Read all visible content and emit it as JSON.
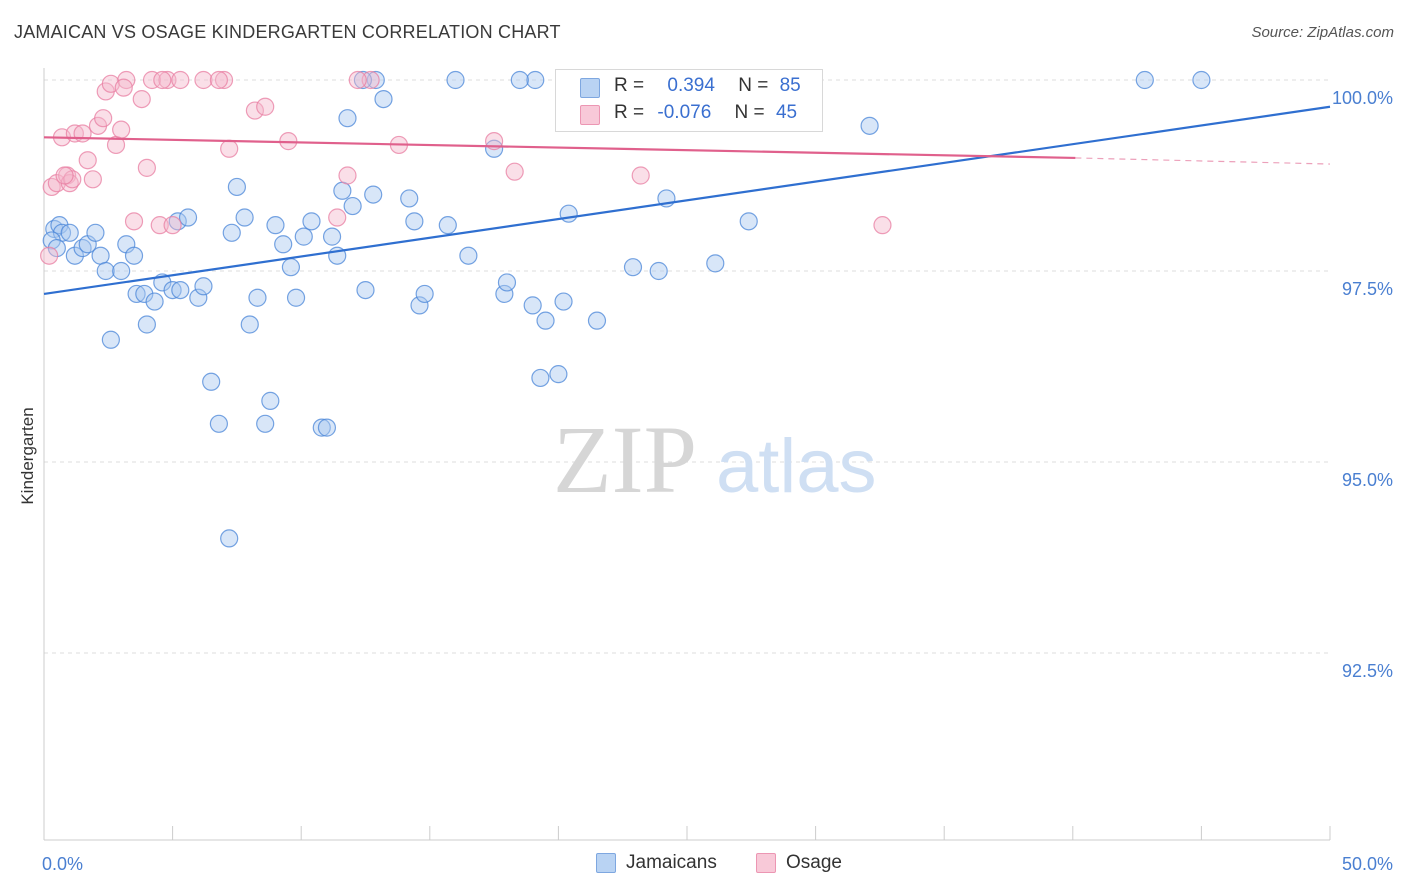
{
  "header": {
    "title": "JAMAICAN VS OSAGE KINDERGARTEN CORRELATION CHART",
    "source": "Source: ZipAtlas.com"
  },
  "watermark": {
    "zip": "ZIP",
    "atlas": "atlas"
  },
  "legend": {
    "rows": [
      {
        "r_label": "R =",
        "r_value": "0.394",
        "n_label": "N =",
        "n_value": "85",
        "color": "#a9c8f0"
      },
      {
        "r_label": "R =",
        "r_value": "-0.076",
        "n_label": "N =",
        "n_value": "45",
        "color": "#f5b7cb"
      }
    ]
  },
  "bottom_legend": [
    {
      "label": "Jamaicans",
      "color": "#a9c8f0"
    },
    {
      "label": "Osage",
      "color": "#f5b7cb"
    }
  ],
  "chart_data": {
    "type": "scatter",
    "title": "JAMAICAN VS OSAGE KINDERGARTEN CORRELATION CHART",
    "ylabel": "Kindergarten",
    "xlabel": "",
    "xlim": [
      0,
      50
    ],
    "ylim": [
      90.0,
      100.5
    ],
    "x_tick_labels": [
      {
        "value": 0,
        "label": "0.0%"
      },
      {
        "value": 50,
        "label": "50.0%"
      }
    ],
    "y_tick_labels": [
      {
        "value": 100,
        "label": "100.0%"
      },
      {
        "value": 97.5,
        "label": "97.5%"
      },
      {
        "value": 95,
        "label": "95.0%"
      },
      {
        "value": 92.5,
        "label": "92.5%"
      }
    ],
    "grid": true,
    "legend_position": "top-center",
    "series": [
      {
        "name": "Jamaicans",
        "color": "#4a86d8",
        "fill": "#a9c8f0",
        "trend": {
          "x": [
            0,
            50
          ],
          "y": [
            97.2,
            99.65
          ],
          "color": "#2f6fd0"
        },
        "points": [
          [
            0.4,
            98.05
          ],
          [
            0.6,
            98.1
          ],
          [
            0.7,
            98.0
          ],
          [
            1.0,
            98.0
          ],
          [
            1.2,
            97.7
          ],
          [
            1.5,
            97.8
          ],
          [
            1.7,
            97.85
          ],
          [
            2.0,
            98.0
          ],
          [
            2.2,
            97.7
          ],
          [
            2.4,
            97.5
          ],
          [
            3.0,
            97.5
          ],
          [
            3.2,
            97.85
          ],
          [
            3.5,
            97.7
          ],
          [
            2.6,
            96.6
          ],
          [
            3.6,
            97.2
          ],
          [
            3.9,
            97.2
          ],
          [
            4.0,
            96.8
          ],
          [
            4.3,
            97.1
          ],
          [
            4.6,
            97.35
          ],
          [
            5.0,
            97.25
          ],
          [
            5.2,
            98.15
          ],
          [
            5.6,
            98.2
          ],
          [
            5.3,
            97.25
          ],
          [
            6.0,
            97.15
          ],
          [
            6.2,
            97.3
          ],
          [
            6.5,
            96.05
          ],
          [
            6.8,
            95.5
          ],
          [
            7.2,
            94.0
          ],
          [
            7.3,
            98.0
          ],
          [
            7.5,
            98.6
          ],
          [
            7.8,
            98.2
          ],
          [
            8.0,
            96.8
          ],
          [
            8.3,
            97.15
          ],
          [
            8.6,
            95.5
          ],
          [
            8.8,
            95.8
          ],
          [
            9.0,
            98.1
          ],
          [
            9.3,
            97.85
          ],
          [
            9.6,
            97.55
          ],
          [
            9.8,
            97.15
          ],
          [
            10.1,
            97.95
          ],
          [
            10.4,
            98.15
          ],
          [
            10.8,
            95.45
          ],
          [
            11.0,
            95.45
          ],
          [
            11.2,
            97.95
          ],
          [
            11.4,
            97.7
          ],
          [
            11.6,
            98.55
          ],
          [
            11.8,
            99.5
          ],
          [
            12.0,
            98.35
          ],
          [
            12.5,
            97.25
          ],
          [
            12.8,
            98.5
          ],
          [
            12.9,
            100.0
          ],
          [
            13.2,
            99.75
          ],
          [
            14.2,
            98.45
          ],
          [
            14.4,
            98.15
          ],
          [
            14.6,
            97.05
          ],
          [
            14.8,
            97.2
          ],
          [
            15.7,
            98.1
          ],
          [
            16.0,
            100.0
          ],
          [
            16.5,
            97.7
          ],
          [
            17.5,
            99.1
          ],
          [
            17.9,
            97.2
          ],
          [
            18.0,
            97.35
          ],
          [
            19.1,
            100.0
          ],
          [
            19.0,
            97.05
          ],
          [
            19.5,
            96.85
          ],
          [
            19.3,
            96.1
          ],
          [
            20.0,
            96.15
          ],
          [
            20.2,
            97.1
          ],
          [
            20.4,
            98.25
          ],
          [
            21.5,
            96.85
          ],
          [
            22.9,
            97.55
          ],
          [
            23.9,
            97.5
          ],
          [
            24.2,
            98.45
          ],
          [
            26.1,
            97.6
          ],
          [
            27.1,
            100.0
          ],
          [
            27.4,
            98.15
          ],
          [
            28.5,
            100.0
          ],
          [
            32.1,
            99.4
          ],
          [
            42.8,
            100.0
          ],
          [
            45.0,
            100.0
          ],
          [
            0.3,
            97.9
          ],
          [
            0.5,
            97.8
          ],
          [
            26.5,
            100.0
          ],
          [
            18.5,
            100.0
          ],
          [
            12.4,
            100.0
          ]
        ]
      },
      {
        "name": "Osage",
        "color": "#e87ea2",
        "fill": "#f5b7cb",
        "trend": {
          "x": [
            0,
            40.1
          ],
          "y": [
            99.25,
            98.98
          ],
          "color": "#e0608c",
          "dashed_extension": {
            "x": [
              40.1,
              50
            ],
            "y": [
              98.98,
              98.9
            ]
          }
        },
        "points": [
          [
            0.2,
            97.7
          ],
          [
            0.3,
            98.6
          ],
          [
            0.5,
            98.65
          ],
          [
            0.7,
            99.25
          ],
          [
            0.9,
            98.75
          ],
          [
            1.0,
            98.65
          ],
          [
            1.2,
            99.3
          ],
          [
            1.5,
            99.3
          ],
          [
            1.7,
            98.95
          ],
          [
            1.9,
            98.7
          ],
          [
            2.1,
            99.4
          ],
          [
            2.3,
            99.5
          ],
          [
            2.4,
            99.85
          ],
          [
            2.6,
            99.95
          ],
          [
            2.8,
            99.15
          ],
          [
            3.0,
            99.35
          ],
          [
            3.2,
            100.0
          ],
          [
            3.5,
            98.15
          ],
          [
            3.8,
            99.75
          ],
          [
            4.0,
            98.85
          ],
          [
            4.2,
            100.0
          ],
          [
            4.5,
            98.1
          ],
          [
            4.8,
            100.0
          ],
          [
            5.0,
            98.1
          ],
          [
            5.3,
            100.0
          ],
          [
            6.2,
            100.0
          ],
          [
            7.0,
            100.0
          ],
          [
            7.2,
            99.1
          ],
          [
            8.2,
            99.6
          ],
          [
            8.6,
            99.65
          ],
          [
            9.5,
            99.2
          ],
          [
            11.4,
            98.2
          ],
          [
            11.8,
            98.75
          ],
          [
            12.7,
            100.0
          ],
          [
            13.8,
            99.15
          ],
          [
            17.5,
            99.2
          ],
          [
            18.3,
            98.8
          ],
          [
            23.2,
            98.75
          ],
          [
            32.6,
            98.1
          ],
          [
            1.1,
            98.7
          ],
          [
            0.8,
            98.75
          ],
          [
            3.1,
            99.9
          ],
          [
            4.6,
            100.0
          ],
          [
            6.8,
            100.0
          ],
          [
            12.2,
            100.0
          ]
        ]
      }
    ]
  }
}
